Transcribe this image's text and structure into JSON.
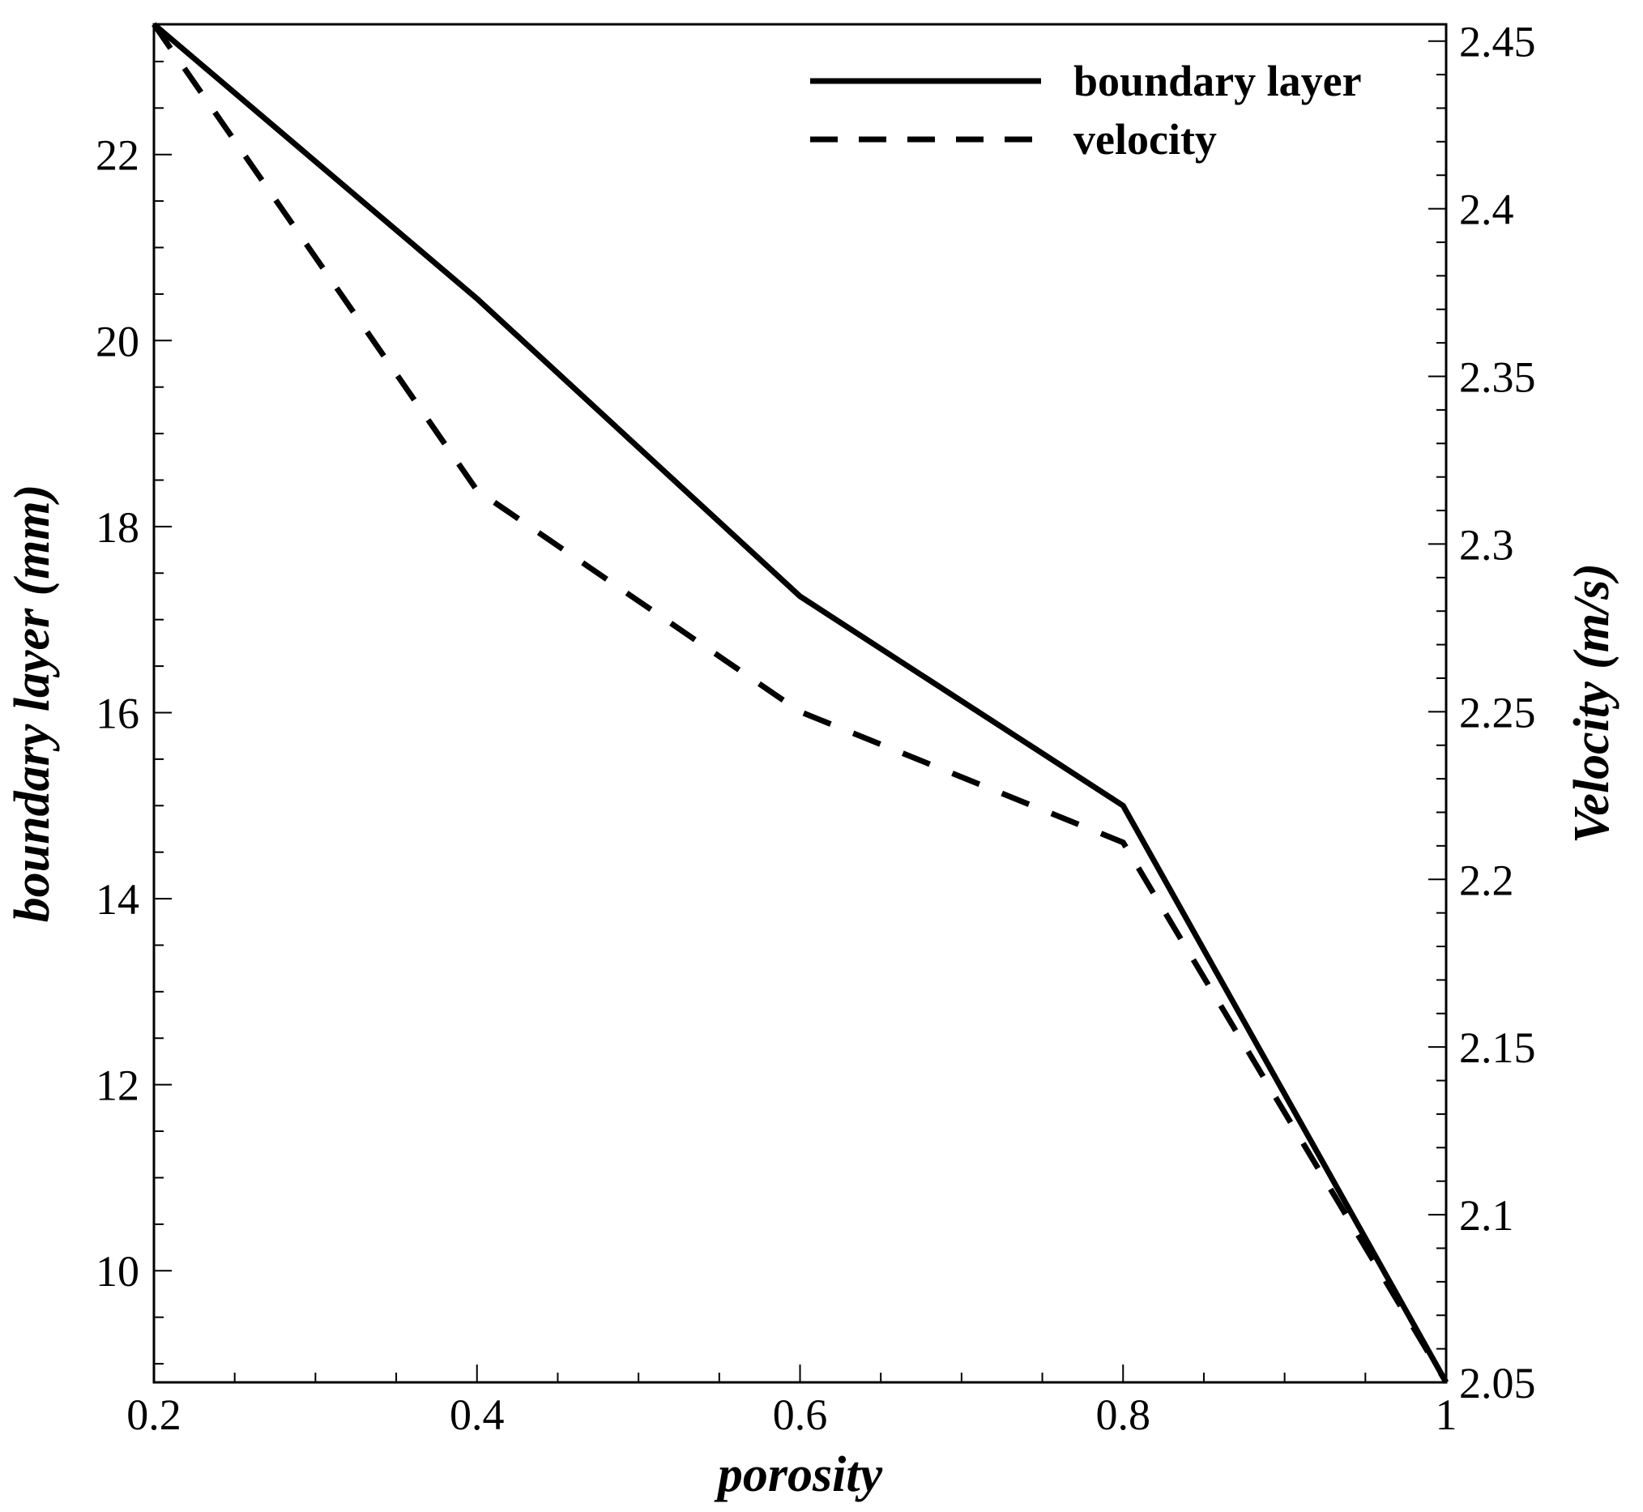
{
  "chart_data": {
    "type": "line",
    "title": "",
    "xlabel": "porosity",
    "ylabel_left": "boundary layer (mm)",
    "ylabel_right": "Velocity (m/s)",
    "xlim": [
      0.2,
      1.0
    ],
    "ylim_left": [
      8.8,
      23.4
    ],
    "ylim_right": [
      2.05,
      2.455
    ],
    "x_ticks": [
      0.2,
      0.4,
      0.6,
      0.8,
      1.0
    ],
    "x_tick_labels": [
      "0.2",
      "0.4",
      "0.6",
      "0.8",
      "1"
    ],
    "x_minor_step": 0.05,
    "y_left_ticks": [
      10,
      12,
      14,
      16,
      18,
      20,
      22
    ],
    "y_left_tick_labels": [
      "10",
      "12",
      "14",
      "16",
      "18",
      "20",
      "22"
    ],
    "y_left_minor_step": 0.5,
    "y_right_ticks": [
      2.05,
      2.1,
      2.15,
      2.2,
      2.25,
      2.3,
      2.35,
      2.4,
      2.45
    ],
    "y_right_tick_labels": [
      "2.05",
      "2.1",
      "2.15",
      "2.2",
      "2.25",
      "2.3",
      "2.35",
      "2.4",
      "2.45"
    ],
    "y_right_minor_step": 0.01,
    "grid": false,
    "legend_position": "top-right",
    "series": [
      {
        "name": "boundary layer",
        "axis": "left",
        "style": "solid",
        "x": [
          0.2,
          0.4,
          0.6,
          0.8,
          1.0
        ],
        "values": [
          23.4,
          20.45,
          17.25,
          15.0,
          8.8
        ]
      },
      {
        "name": "velocity",
        "axis": "right",
        "style": "dashed",
        "x": [
          0.2,
          0.4,
          0.6,
          0.8,
          1.0
        ],
        "values": [
          2.455,
          2.316,
          2.25,
          2.211,
          2.05
        ]
      }
    ],
    "line_color": "#000000"
  }
}
